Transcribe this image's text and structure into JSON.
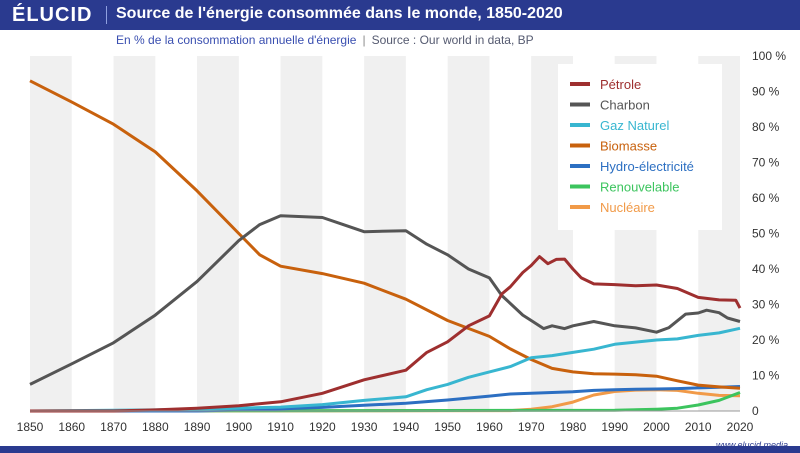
{
  "header": {
    "logo": "ÉLUCID",
    "title": "Source de l'énergie consommée dans le monde, 1850-2020",
    "subtitle": "En % de la consommation annuelle d'énergie",
    "source": "Source : Our world in data, BP",
    "website": "www.elucid.media"
  },
  "colors": {
    "brand": "#2a3a8f",
    "band": "#f0f0f0"
  },
  "chart_data": {
    "type": "line",
    "xlim": [
      1850,
      2020
    ],
    "ylim": [
      0,
      100
    ],
    "x_ticks": [
      1850,
      1860,
      1870,
      1880,
      1890,
      1900,
      1910,
      1920,
      1930,
      1940,
      1950,
      1960,
      1970,
      1980,
      1990,
      2000,
      2010,
      2020
    ],
    "y_ticks": [
      0,
      10,
      20,
      30,
      40,
      50,
      60,
      70,
      80,
      90,
      100
    ],
    "y_tick_labels": [
      "0",
      "10 %",
      "20 %",
      "30 %",
      "40 %",
      "50 %",
      "60 %",
      "70 %",
      "80 %",
      "90 %",
      "100 %"
    ],
    "legend_position": "top-right",
    "grid": "alternating vertical bands",
    "series": [
      {
        "name": "Pétrole",
        "color": "#9e2f2f",
        "points": [
          [
            1850,
            0
          ],
          [
            1870,
            0
          ],
          [
            1880,
            0.3
          ],
          [
            1890,
            0.8
          ],
          [
            1900,
            1.5
          ],
          [
            1910,
            2.6
          ],
          [
            1920,
            5
          ],
          [
            1930,
            8.8
          ],
          [
            1940,
            11.5
          ],
          [
            1945,
            16.5
          ],
          [
            1950,
            19.5
          ],
          [
            1955,
            24
          ],
          [
            1960,
            26.8
          ],
          [
            1963,
            33
          ],
          [
            1965,
            35
          ],
          [
            1968,
            39
          ],
          [
            1970,
            41
          ],
          [
            1972,
            43.5
          ],
          [
            1974,
            41.5
          ],
          [
            1976,
            42.7
          ],
          [
            1978,
            42.8
          ],
          [
            1980,
            40
          ],
          [
            1982,
            37.5
          ],
          [
            1985,
            35.8
          ],
          [
            1990,
            35.6
          ],
          [
            1995,
            35.3
          ],
          [
            2000,
            35.5
          ],
          [
            2005,
            34.5
          ],
          [
            2010,
            32
          ],
          [
            2015,
            31.3
          ],
          [
            2019,
            31.2
          ],
          [
            2020,
            29
          ]
        ]
      },
      {
        "name": "Charbon",
        "color": "#555555",
        "points": [
          [
            1850,
            7.5
          ],
          [
            1860,
            13.3
          ],
          [
            1870,
            19.2
          ],
          [
            1880,
            27
          ],
          [
            1890,
            36.5
          ],
          [
            1900,
            48
          ],
          [
            1905,
            52.5
          ],
          [
            1910,
            55
          ],
          [
            1920,
            54.5
          ],
          [
            1925,
            52.5
          ],
          [
            1930,
            50.5
          ],
          [
            1940,
            50.8
          ],
          [
            1945,
            47
          ],
          [
            1950,
            44
          ],
          [
            1955,
            40
          ],
          [
            1960,
            37.5
          ],
          [
            1963,
            32.5
          ],
          [
            1968,
            27
          ],
          [
            1970,
            25.5
          ],
          [
            1973,
            23.2
          ],
          [
            1975,
            24
          ],
          [
            1978,
            23.2
          ],
          [
            1980,
            24
          ],
          [
            1985,
            25.2
          ],
          [
            1990,
            24
          ],
          [
            1995,
            23.4
          ],
          [
            2000,
            22.2
          ],
          [
            2003,
            23.5
          ],
          [
            2007,
            27.3
          ],
          [
            2010,
            27.6
          ],
          [
            2012,
            28.4
          ],
          [
            2015,
            27.7
          ],
          [
            2017,
            26.2
          ],
          [
            2020,
            25.2
          ]
        ]
      },
      {
        "name": "Gaz Naturel",
        "color": "#38b6d0",
        "points": [
          [
            1850,
            0
          ],
          [
            1880,
            0.3
          ],
          [
            1890,
            0.5
          ],
          [
            1900,
            0.8
          ],
          [
            1910,
            1.1
          ],
          [
            1920,
            1.8
          ],
          [
            1930,
            3
          ],
          [
            1940,
            4
          ],
          [
            1945,
            6
          ],
          [
            1950,
            7.5
          ],
          [
            1955,
            9.5
          ],
          [
            1960,
            11
          ],
          [
            1965,
            12.5
          ],
          [
            1970,
            15
          ],
          [
            1975,
            15.6
          ],
          [
            1980,
            16.5
          ],
          [
            1985,
            17.4
          ],
          [
            1990,
            18.8
          ],
          [
            1995,
            19.4
          ],
          [
            2000,
            20
          ],
          [
            2005,
            20.3
          ],
          [
            2010,
            21.3
          ],
          [
            2015,
            22
          ],
          [
            2020,
            23.3
          ]
        ]
      },
      {
        "name": "Biomasse",
        "color": "#c8610d",
        "points": [
          [
            1850,
            93
          ],
          [
            1860,
            87
          ],
          [
            1870,
            80.8
          ],
          [
            1880,
            73
          ],
          [
            1890,
            62
          ],
          [
            1900,
            50
          ],
          [
            1905,
            44
          ],
          [
            1910,
            40.8
          ],
          [
            1920,
            38.7
          ],
          [
            1930,
            36
          ],
          [
            1940,
            31.5
          ],
          [
            1950,
            25.5
          ],
          [
            1960,
            21
          ],
          [
            1965,
            17.5
          ],
          [
            1970,
            14.5
          ],
          [
            1975,
            12
          ],
          [
            1980,
            11
          ],
          [
            1985,
            10.5
          ],
          [
            1990,
            10.4
          ],
          [
            1995,
            10.2
          ],
          [
            2000,
            9.8
          ],
          [
            2005,
            8.5
          ],
          [
            2010,
            7.3
          ],
          [
            2015,
            6.8
          ],
          [
            2020,
            6.4
          ]
        ]
      },
      {
        "name": "Hydro-électricité",
        "color": "#2c6fc2",
        "points": [
          [
            1850,
            0
          ],
          [
            1890,
            0
          ],
          [
            1900,
            0.3
          ],
          [
            1910,
            0.6
          ],
          [
            1920,
            1
          ],
          [
            1930,
            1.6
          ],
          [
            1940,
            2.2
          ],
          [
            1950,
            3.1
          ],
          [
            1960,
            4.2
          ],
          [
            1965,
            4.8
          ],
          [
            1970,
            5
          ],
          [
            1975,
            5.2
          ],
          [
            1980,
            5.4
          ],
          [
            1985,
            5.8
          ],
          [
            1990,
            6
          ],
          [
            1995,
            6.1
          ],
          [
            2000,
            6.2
          ],
          [
            2005,
            6.3
          ],
          [
            2010,
            6.5
          ],
          [
            2015,
            6.7
          ],
          [
            2020,
            6.9
          ]
        ]
      },
      {
        "name": "Renouvelable",
        "color": "#3cc45e",
        "points": [
          [
            1850,
            0
          ],
          [
            1990,
            0.2
          ],
          [
            2000,
            0.5
          ],
          [
            2005,
            0.8
          ],
          [
            2010,
            1.7
          ],
          [
            2015,
            3
          ],
          [
            2020,
            5.2
          ]
        ]
      },
      {
        "name": "Nucléaire",
        "color": "#f19a48",
        "points": [
          [
            1850,
            0
          ],
          [
            1965,
            0.1
          ],
          [
            1970,
            0.5
          ],
          [
            1975,
            1.2
          ],
          [
            1980,
            2.5
          ],
          [
            1985,
            4.5
          ],
          [
            1990,
            5.5
          ],
          [
            1995,
            5.9
          ],
          [
            2000,
            6
          ],
          [
            2005,
            5.8
          ],
          [
            2010,
            5
          ],
          [
            2015,
            4.4
          ],
          [
            2020,
            4.3
          ]
        ]
      }
    ]
  }
}
